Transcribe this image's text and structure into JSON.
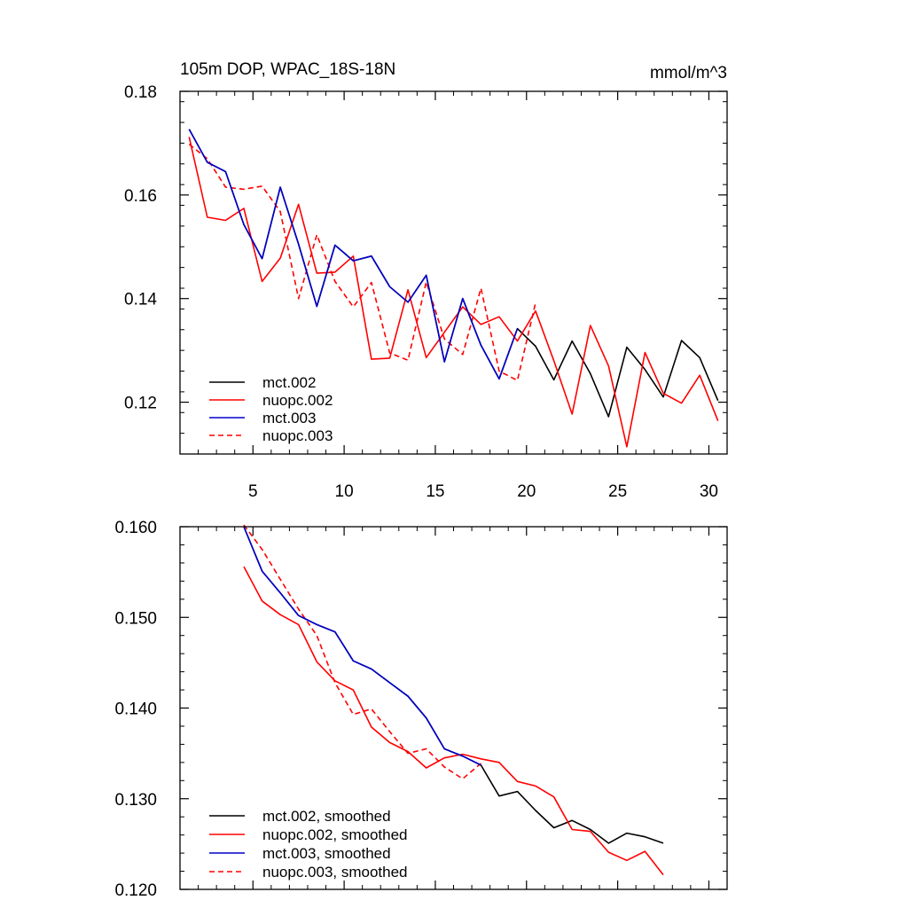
{
  "chart_data": [
    {
      "type": "line",
      "title": "105m DOP, WPAC_18S-18N",
      "units": "mmol/m^3",
      "xlabel": "",
      "ylabel": "",
      "xlim": [
        1,
        31
      ],
      "ylim": [
        0.11,
        0.18
      ],
      "xticks": [
        5,
        10,
        15,
        20,
        25,
        30
      ],
      "xtick_labels": [
        "5",
        "10",
        "15",
        "20",
        "25",
        "30"
      ],
      "yticks": [
        0.12,
        0.14,
        0.16,
        0.18
      ],
      "ytick_labels": [
        "0.12",
        "0.14",
        "0.16",
        "0.18"
      ],
      "legend_position": "bottom-left",
      "series": [
        {
          "name": "mct.002",
          "color": "#000000",
          "dash": "solid",
          "x": [
            1.5,
            2.5,
            3.5,
            4.5,
            5.5,
            6.5,
            7.5,
            8.5,
            9.5,
            10.5,
            11.5,
            12.5,
            13.5,
            14.5,
            15.5,
            16.5,
            17.5,
            18.5,
            19.5,
            20.5,
            21.5,
            22.5,
            23.5,
            24.5,
            25.5,
            26.5,
            27.5,
            28.5,
            29.5,
            30.5
          ],
          "values": [
            0.1727,
            0.1663,
            0.1645,
            0.1543,
            0.1477,
            0.1615,
            0.1505,
            0.1385,
            0.1503,
            0.1473,
            0.1482,
            0.1423,
            0.1393,
            0.1445,
            0.1278,
            0.14,
            0.131,
            0.1245,
            0.1342,
            0.1308,
            0.1243,
            0.1318,
            0.1255,
            0.1172,
            0.1306,
            0.1263,
            0.121,
            0.1319,
            0.1286,
            0.1203
          ]
        },
        {
          "name": "nuopc.002",
          "color": "#ff0000",
          "dash": "solid",
          "x": [
            1.5,
            2.5,
            3.5,
            4.5,
            5.5,
            6.5,
            7.5,
            8.5,
            9.5,
            10.5,
            11.5,
            12.5,
            13.5,
            14.5,
            15.5,
            16.5,
            17.5,
            18.5,
            19.5,
            20.5,
            21.5,
            22.5,
            23.5,
            24.5,
            25.5,
            26.5,
            27.5,
            28.5,
            29.5,
            30.5
          ],
          "values": [
            0.1712,
            0.1557,
            0.1551,
            0.1574,
            0.1433,
            0.1478,
            0.1582,
            0.1449,
            0.1451,
            0.1482,
            0.1283,
            0.1285,
            0.1417,
            0.1286,
            0.1335,
            0.1384,
            0.135,
            0.1365,
            0.1318,
            0.1376,
            0.128,
            0.1177,
            0.1348,
            0.127,
            0.1114,
            0.1296,
            0.1217,
            0.1198,
            0.1252,
            0.1164
          ]
        },
        {
          "name": "mct.003",
          "color": "#0000cc",
          "dash": "solid",
          "x": [
            1.5,
            2.5,
            3.5,
            4.5,
            5.5,
            6.5,
            7.5,
            8.5,
            9.5,
            10.5,
            11.5,
            12.5,
            13.5,
            14.5,
            15.5,
            16.5,
            17.5,
            18.5,
            19.5
          ],
          "values": [
            0.1727,
            0.1663,
            0.1645,
            0.1543,
            0.1477,
            0.1615,
            0.1505,
            0.1385,
            0.1503,
            0.1473,
            0.1482,
            0.1423,
            0.1393,
            0.1445,
            0.1278,
            0.14,
            0.131,
            0.1245,
            0.1342
          ]
        },
        {
          "name": "nuopc.003",
          "color": "#ff0000",
          "dash": "dashed",
          "x": [
            1.5,
            2.5,
            3.5,
            4.5,
            5.5,
            6.5,
            7.5,
            8.5,
            9.5,
            10.5,
            11.5,
            12.5,
            13.5,
            14.5,
            15.5,
            16.5,
            17.5,
            18.5,
            19.5,
            20.5
          ],
          "values": [
            0.1698,
            0.167,
            0.1615,
            0.1611,
            0.1617,
            0.1568,
            0.14,
            0.1523,
            0.1433,
            0.1384,
            0.1431,
            0.1295,
            0.1281,
            0.1432,
            0.1322,
            0.1292,
            0.142,
            0.126,
            0.1242,
            0.1392
          ]
        }
      ]
    },
    {
      "type": "line",
      "title": "",
      "xlabel": "",
      "ylabel": "",
      "xlim": [
        1,
        31
      ],
      "ylim": [
        0.12,
        0.16
      ],
      "xticks": [
        5,
        10,
        15,
        20,
        25,
        30
      ],
      "xtick_labels": [],
      "yticks": [
        0.12,
        0.13,
        0.14,
        0.15,
        0.16
      ],
      "ytick_labels": [
        "0.120",
        "0.130",
        "0.140",
        "0.150",
        "0.160"
      ],
      "legend_position": "bottom-left",
      "series": [
        {
          "name": "mct.002, smoothed",
          "color": "#000000",
          "dash": "solid",
          "x": [
            4.5,
            5.5,
            6.5,
            7.5,
            8.5,
            9.5,
            10.5,
            11.5,
            12.5,
            13.5,
            14.5,
            15.5,
            16.5,
            17.5,
            18.5,
            19.5,
            20.5,
            21.5,
            22.5,
            23.5,
            24.5,
            25.5,
            26.5,
            27.5
          ],
          "values": [
            0.16,
            0.1551,
            0.1527,
            0.1502,
            0.1492,
            0.1484,
            0.1452,
            0.1443,
            0.1428,
            0.1413,
            0.1389,
            0.1355,
            0.1347,
            0.1337,
            0.1303,
            0.1308,
            0.1287,
            0.1268,
            0.1276,
            0.1266,
            0.1251,
            0.1262,
            0.1258,
            0.1251
          ]
        },
        {
          "name": "nuopc.002, smoothed",
          "color": "#ff0000",
          "dash": "solid",
          "x": [
            4.5,
            5.5,
            6.5,
            7.5,
            8.5,
            9.5,
            10.5,
            11.5,
            12.5,
            13.5,
            14.5,
            15.5,
            16.5,
            17.5,
            18.5,
            19.5,
            20.5,
            21.5,
            22.5,
            23.5,
            24.5,
            25.5,
            26.5,
            27.5
          ],
          "values": [
            0.1556,
            0.1518,
            0.1503,
            0.1492,
            0.1451,
            0.143,
            0.142,
            0.1379,
            0.1362,
            0.1352,
            0.1334,
            0.1345,
            0.1349,
            0.1344,
            0.134,
            0.1319,
            0.1314,
            0.1302,
            0.1266,
            0.1264,
            0.1241,
            0.1232,
            0.1242,
            0.1216
          ]
        },
        {
          "name": "mct.003, smoothed",
          "color": "#0000cc",
          "dash": "solid",
          "x": [
            4.5,
            5.5,
            6.5,
            7.5,
            8.5,
            9.5,
            10.5,
            11.5,
            12.5,
            13.5,
            14.5,
            15.5,
            16.5,
            17.5
          ],
          "values": [
            0.16,
            0.1551,
            0.1527,
            0.1502,
            0.1492,
            0.1484,
            0.1452,
            0.1443,
            0.1428,
            0.1413,
            0.1389,
            0.1355,
            0.1347,
            0.1337
          ]
        },
        {
          "name": "nuopc.003, smoothed",
          "color": "#ff0000",
          "dash": "dashed",
          "x": [
            4.5,
            5.5,
            6.5,
            7.5,
            8.5,
            9.5,
            10.5,
            11.5,
            12.5,
            13.5,
            14.5,
            15.5,
            16.5,
            17.5
          ],
          "values": [
            0.1602,
            0.1575,
            0.1542,
            0.1509,
            0.148,
            0.1428,
            0.1393,
            0.1399,
            0.1374,
            0.135,
            0.1355,
            0.1335,
            0.1322,
            0.1339
          ]
        }
      ]
    }
  ]
}
